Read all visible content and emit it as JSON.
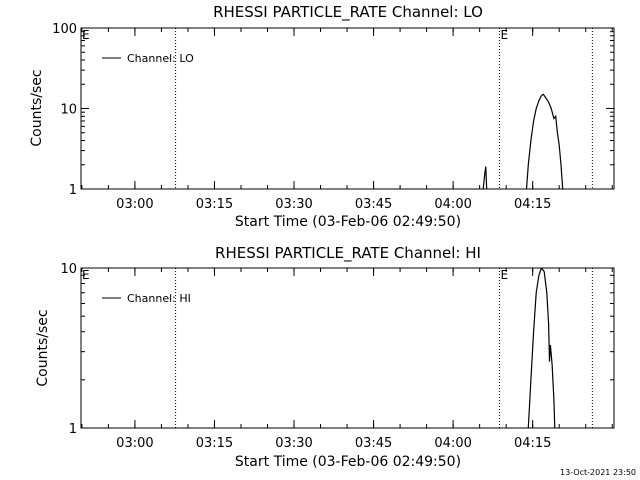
{
  "chart_data": [
    {
      "type": "line",
      "title": "RHESSI PARTICLE_RATE Channel: LO",
      "xlabel": "Start Time (03-Feb-06 02:49:50)",
      "ylabel": "Counts/sec",
      "yscale": "log",
      "ylim": [
        1,
        100
      ],
      "xlim": [
        "02:49:50",
        "04:30:20"
      ],
      "yticks": [
        "1",
        "10",
        "100"
      ],
      "xticks": [
        "03:00",
        "03:15",
        "03:30",
        "03:45",
        "04:00",
        "04:15"
      ],
      "legend": {
        "placement": "top-left",
        "entries": [
          "Channel: LO"
        ]
      },
      "markers": [
        {
          "label": "E",
          "time": "02:49:50"
        },
        {
          "label": "",
          "time": "03:07:40"
        },
        {
          "label": "E",
          "time": "04:08:45"
        },
        {
          "label": "",
          "time": "04:26:15"
        }
      ],
      "series": [
        {
          "name": "Channel: LO",
          "points": [
            [
              "04:05:40",
              1.0
            ],
            [
              "04:06:00",
              1.6
            ],
            [
              "04:06:10",
              1.9
            ],
            [
              "04:06:20",
              1.0
            ],
            [
              "04:13:50",
              1.0
            ],
            [
              "04:14:10",
              2.0
            ],
            [
              "04:14:40",
              4.0
            ],
            [
              "04:15:10",
              7.0
            ],
            [
              "04:15:40",
              10.0
            ],
            [
              "04:16:10",
              12.5
            ],
            [
              "04:16:40",
              14.5
            ],
            [
              "04:17:00",
              15.0
            ],
            [
              "04:17:30",
              13.5
            ],
            [
              "04:18:00",
              12.0
            ],
            [
              "04:18:30",
              10.0
            ],
            [
              "04:19:00",
              7.5
            ],
            [
              "04:19:20",
              8.0
            ],
            [
              "04:19:40",
              5.0
            ],
            [
              "04:20:00",
              3.5
            ],
            [
              "04:20:20",
              2.0
            ],
            [
              "04:20:40",
              1.0
            ]
          ]
        }
      ]
    },
    {
      "type": "line",
      "title": "RHESSI PARTICLE_RATE Channel: HI",
      "xlabel": "Start Time (03-Feb-06 02:49:50)",
      "ylabel": "Counts/sec",
      "yscale": "log",
      "ylim": [
        1,
        10
      ],
      "xlim": [
        "02:49:50",
        "04:30:20"
      ],
      "yticks": [
        "1",
        "10"
      ],
      "xticks": [
        "03:00",
        "03:15",
        "03:30",
        "03:45",
        "04:00",
        "04:15"
      ],
      "legend": {
        "placement": "top-left",
        "entries": [
          "Channel: HI"
        ]
      },
      "markers": [
        {
          "label": "E",
          "time": "02:49:50"
        },
        {
          "label": "",
          "time": "03:07:40"
        },
        {
          "label": "E",
          "time": "04:08:45"
        },
        {
          "label": "",
          "time": "04:26:15"
        }
      ],
      "series": [
        {
          "name": "Channel: HI",
          "points": [
            [
              "04:14:10",
              1.0
            ],
            [
              "04:14:40",
              2.0
            ],
            [
              "04:15:10",
              4.0
            ],
            [
              "04:15:40",
              7.0
            ],
            [
              "04:16:10",
              9.0
            ],
            [
              "04:16:40",
              10.0
            ],
            [
              "04:17:10",
              9.5
            ],
            [
              "04:17:40",
              7.0
            ],
            [
              "04:18:00",
              4.5
            ],
            [
              "04:18:10",
              2.6
            ],
            [
              "04:18:20",
              3.3
            ],
            [
              "04:18:40",
              2.5
            ],
            [
              "04:19:00",
              1.5
            ],
            [
              "04:19:10",
              1.0
            ]
          ]
        }
      ]
    }
  ],
  "footer": {
    "timestamp": "13-Oct-2021 23:50"
  }
}
